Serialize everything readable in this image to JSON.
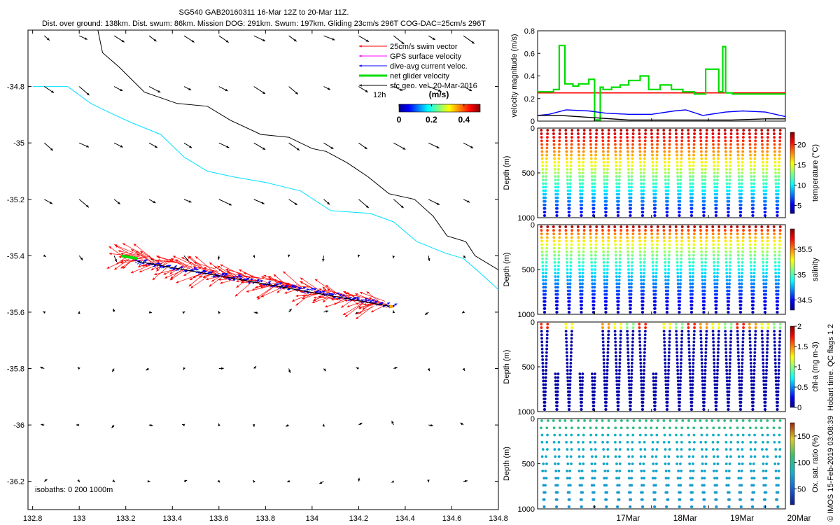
{
  "header": {
    "title_line1": "SG540 GAB20160311 16-Mar 12Z to 20-Mar 11Z.",
    "title_line2": "Dist. over ground: 138km. Dist. swum: 86km. Mission DOG: 291km. Swum: 197km. Gliding 23cm/s 296T COG-DAC=25cm/s 296T"
  },
  "map": {
    "x_ticks": [
      "132.8",
      "133",
      "133.2",
      "133.4",
      "133.6",
      "133.8",
      "134",
      "134.2",
      "134.4",
      "134.6",
      "134.8"
    ],
    "y_ticks": [
      "-34.8",
      "-35",
      "-35.2",
      "-35.4",
      "-35.6",
      "-35.8",
      "-36",
      "-36.2"
    ],
    "xlim": [
      132.78,
      134.8
    ],
    "ylim": [
      -36.3,
      -34.6
    ],
    "legend": [
      {
        "label": "25cm/s swim vector",
        "color": "#ff0000"
      },
      {
        "label": "GPS surface velocity",
        "color": "#ff00ff"
      },
      {
        "label": "dive-avg current veloc.",
        "color": "#0000ff"
      },
      {
        "label": "net glider velocity",
        "color": "#00dd00"
      },
      {
        "label": "sfc geo. vel. 20-Mar-2016",
        "color": "#000000"
      }
    ],
    "legend_note": "12h",
    "colorbar": {
      "title": "(m/s)",
      "ticks": [
        "0",
        "0.2",
        "0.4"
      ],
      "range": [
        0,
        0.5
      ]
    },
    "isobaths_label": "isobaths: 0   200  1000m"
  },
  "days": [
    "17Mar",
    "18Mar",
    "19Mar",
    "20Mar"
  ],
  "velocity_panel": {
    "ylabel": "velocity magnitude (m/s)",
    "yticks": [
      "0",
      "0.2",
      "0.4",
      "0.6",
      "0.8"
    ],
    "ylim": [
      0,
      0.8
    ]
  },
  "profile_panels": [
    {
      "ylabel": "Depth (m)",
      "yticks": [
        "0",
        "500",
        "1000"
      ],
      "cbar_label": "temperature (°C)",
      "cbar_ticks": [
        "5",
        "10",
        "15",
        "20"
      ],
      "cbar_range": [
        3,
        23
      ]
    },
    {
      "ylabel": "Depth (m)",
      "yticks": [
        "0",
        "500",
        "1000"
      ],
      "cbar_label": "salinity",
      "cbar_ticks": [
        "34.5",
        "35",
        "35.5"
      ],
      "cbar_range": [
        34.3,
        35.9
      ]
    },
    {
      "ylabel": "Depth (m)",
      "yticks": [
        "0",
        "500",
        "1000"
      ],
      "cbar_label": "chl-a (mg m-3)",
      "cbar_ticks": [
        "0",
        "0.5",
        "1",
        "1.5",
        "2"
      ],
      "cbar_range": [
        0,
        2
      ]
    },
    {
      "ylabel": "Depth (m)",
      "yticks": [
        "0",
        "500",
        "1000"
      ],
      "cbar_label": "Ox. sat. ratio (%)",
      "cbar_ticks": [
        "50",
        "100",
        "150"
      ],
      "cbar_range": [
        20,
        175
      ]
    }
  ],
  "qc_note": "Hobart time. QC flags 1  2",
  "copyright": "© IMOS 15-Feb-2019 03:08:39",
  "chart_data": [
    {
      "type": "scatter",
      "title": "SG540 GAB20160311 16-Mar 12Z to 20-Mar 11Z.",
      "xlabel": "",
      "ylabel": "",
      "xlim": [
        132.78,
        134.8
      ],
      "ylim": [
        -36.3,
        -34.6
      ],
      "track": {
        "start": [
          133.2,
          -35.4
        ],
        "end": [
          134.34,
          -35.58
        ]
      },
      "coastline_black": [
        [
          133.08,
          -34.6
        ],
        [
          133.1,
          -34.68
        ],
        [
          133.17,
          -34.73
        ],
        [
          133.28,
          -34.82
        ],
        [
          133.42,
          -34.86
        ],
        [
          133.55,
          -34.87
        ],
        [
          133.65,
          -34.92
        ],
        [
          133.78,
          -34.97
        ],
        [
          133.9,
          -34.98
        ],
        [
          134.0,
          -35.02
        ],
        [
          134.06,
          -35.03
        ],
        [
          134.15,
          -35.07
        ],
        [
          134.24,
          -35.12
        ],
        [
          134.33,
          -35.18
        ],
        [
          134.44,
          -35.2
        ],
        [
          134.52,
          -35.26
        ],
        [
          134.58,
          -35.33
        ],
        [
          134.66,
          -35.35
        ],
        [
          134.7,
          -35.4
        ],
        [
          134.8,
          -35.45
        ]
      ],
      "coastline_cyan": [
        [
          132.8,
          -34.8
        ],
        [
          132.95,
          -34.8
        ],
        [
          133.05,
          -34.86
        ],
        [
          133.15,
          -34.9
        ],
        [
          133.23,
          -34.93
        ],
        [
          133.35,
          -34.97
        ],
        [
          133.45,
          -35.05
        ],
        [
          133.55,
          -35.1
        ],
        [
          133.66,
          -35.12
        ],
        [
          133.8,
          -35.14
        ],
        [
          133.95,
          -35.17
        ],
        [
          134.08,
          -35.24
        ],
        [
          134.25,
          -35.25
        ],
        [
          134.35,
          -35.28
        ],
        [
          134.45,
          -35.35
        ],
        [
          134.57,
          -35.39
        ],
        [
          134.65,
          -35.41
        ],
        [
          134.72,
          -35.46
        ],
        [
          134.8,
          -35.52
        ]
      ]
    },
    {
      "type": "line",
      "ylabel": "velocity magnitude (m/s)",
      "ylim": [
        0,
        0.8
      ],
      "x_range_days": [
        16.0,
        20.35
      ],
      "series": [
        {
          "name": "25cm/s swim vector",
          "color": "#ff0000",
          "x": [
            16.0,
            20.35
          ],
          "values": [
            0.25,
            0.25
          ]
        },
        {
          "name": "net glider velocity",
          "color": "#00dd00",
          "x": [
            16.0,
            16.28,
            16.28,
            16.38,
            16.38,
            16.48,
            16.48,
            16.62,
            16.62,
            16.72,
            16.72,
            16.9,
            16.9,
            17.0,
            17.0,
            17.1,
            17.1,
            17.15,
            17.15,
            17.3,
            17.3,
            17.45,
            17.45,
            17.6,
            17.6,
            17.8,
            17.8,
            17.95,
            17.95,
            18.15,
            18.15,
            18.35,
            18.35,
            18.55,
            18.55,
            18.75,
            18.75,
            18.95,
            18.95,
            19.18,
            19.18,
            19.25,
            19.25,
            19.3,
            19.3,
            19.42,
            19.42,
            19.55,
            19.55,
            19.7,
            19.7,
            19.82,
            19.82,
            19.95,
            19.95,
            20.35
          ],
          "values": [
            0.26,
            0.26,
            0.28,
            0.28,
            0.67,
            0.67,
            0.33,
            0.33,
            0.31,
            0.31,
            0.33,
            0.33,
            0.37,
            0.37,
            0.01,
            0.01,
            0.3,
            0.3,
            0.28,
            0.28,
            0.3,
            0.3,
            0.32,
            0.32,
            0.36,
            0.36,
            0.4,
            0.4,
            0.28,
            0.28,
            0.32,
            0.32,
            0.28,
            0.28,
            0.26,
            0.26,
            0.24,
            0.24,
            0.46,
            0.46,
            0.26,
            0.26,
            0.66,
            0.66,
            0.25,
            0.25,
            0.24,
            0.24,
            0.24,
            0.24,
            0.24,
            0.24,
            0.24,
            0.24,
            0.24,
            0.24
          ]
        },
        {
          "name": "dive-avg current veloc.",
          "color": "#0000ff",
          "x": [
            16.0,
            16.2,
            16.5,
            16.9,
            17.2,
            17.6,
            18.0,
            18.4,
            18.6,
            18.9,
            19.3,
            19.6,
            20.0,
            20.35
          ],
          "values": [
            0.05,
            0.06,
            0.1,
            0.09,
            0.07,
            0.06,
            0.06,
            0.09,
            0.1,
            0.05,
            0.08,
            0.09,
            0.08,
            0.04
          ]
        },
        {
          "name": "GPS surface velocity",
          "color": "#000000",
          "x": [
            16.0,
            16.4,
            17.0,
            17.6,
            18.2,
            18.8,
            19.4,
            20.0,
            20.35
          ],
          "values": [
            0.05,
            0.05,
            0.03,
            0.01,
            0.01,
            0.01,
            0.01,
            0.02,
            0.02
          ]
        }
      ]
    }
  ]
}
